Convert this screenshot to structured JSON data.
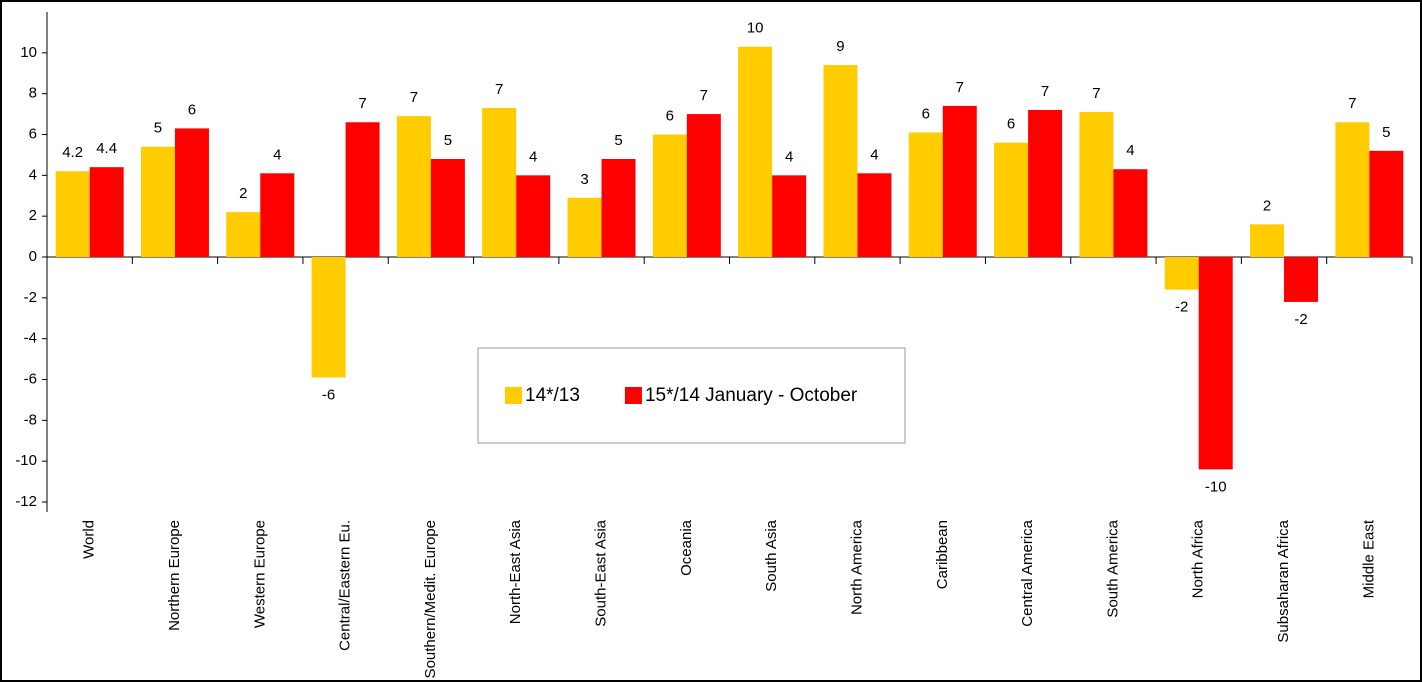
{
  "chart_data": {
    "type": "bar",
    "categories": [
      "World",
      "Northern Europe",
      "Western Europe",
      "Central/Eastern Eu.",
      "Southern/Medit. Europe",
      "North-East Asia",
      "South-East Asia",
      "Oceania",
      "South Asia",
      "North America",
      "Caribbean",
      "Central America",
      "South America",
      "North Africa",
      "Subsaharan Africa",
      "Middle East"
    ],
    "series": [
      {
        "name": "14*/13",
        "color": "#FFCC00",
        "values": [
          4.2,
          5.4,
          2.2,
          -5.9,
          6.9,
          7.3,
          2.9,
          6.0,
          10.3,
          9.4,
          6.1,
          5.6,
          7.1,
          -1.6,
          1.6,
          6.6
        ],
        "value_labels": [
          "4.2",
          "5",
          "2",
          "-6",
          "7",
          "7",
          "3",
          "6",
          "10",
          "9",
          "6",
          "6",
          "7",
          "-2",
          "2",
          "7"
        ]
      },
      {
        "name": "15*/14 January - October",
        "color": "#FF0000",
        "values": [
          4.4,
          6.3,
          4.1,
          6.6,
          4.8,
          4.0,
          4.8,
          7.0,
          4.0,
          4.1,
          7.4,
          7.2,
          4.3,
          -10.4,
          -2.2,
          5.2
        ],
        "value_labels": [
          "4.4",
          "6",
          "4",
          "7",
          "5",
          "4",
          "5",
          "7",
          "4",
          "4",
          "7",
          "7",
          "4",
          "-10",
          "-2",
          "5"
        ]
      }
    ],
    "ylim": [
      -12,
      12
    ],
    "yticks": [
      -12,
      -10,
      -8,
      -6,
      -4,
      -2,
      0,
      2,
      4,
      6,
      8,
      10
    ],
    "grid": false
  }
}
